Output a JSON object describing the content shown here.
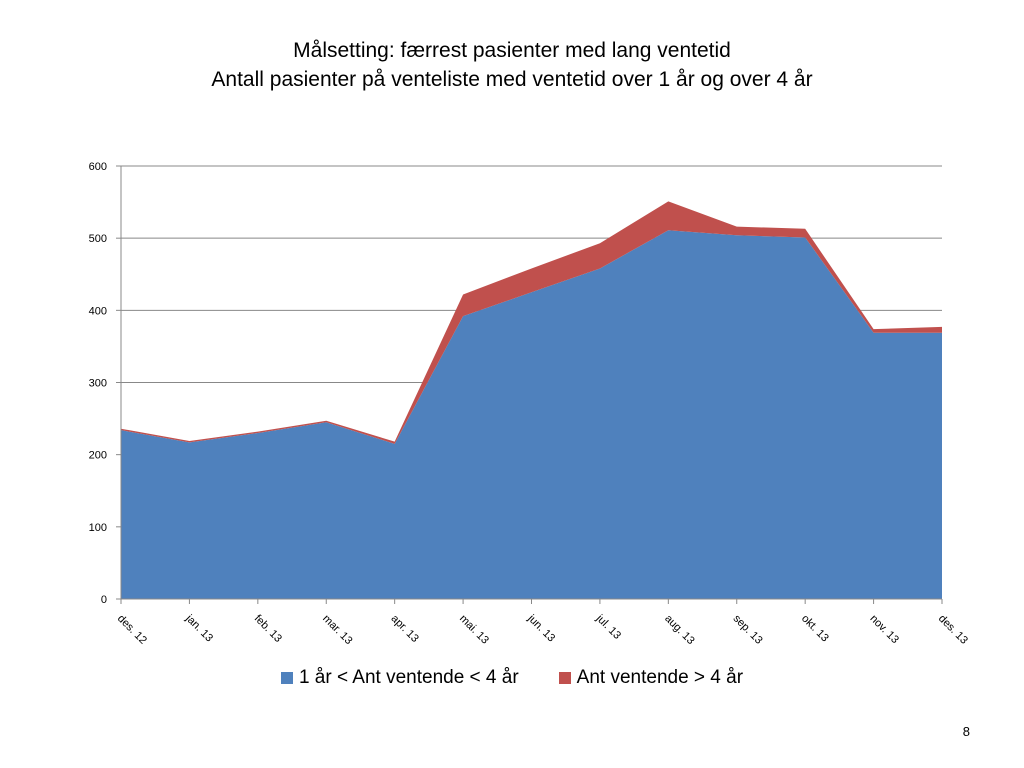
{
  "slide": {
    "title_line1": "Målsetting: færrest pasienter med lang ventetid",
    "title_line2": "Antall pasienter på venteliste med ventetid over 1 år og over 4 år",
    "page_number": "8"
  },
  "colors": {
    "series1": "#4f81bd",
    "series2": "#c0504d",
    "gridline": "#888888",
    "axis": "#888888"
  },
  "chart_data": {
    "type": "area",
    "stacked": true,
    "title": "Antall pasienter på venteliste med ventetid over 1 år og over 4 år",
    "xlabel": "",
    "ylabel": "",
    "categories": [
      "des. 12",
      "jan. 13",
      "feb. 13",
      "mar. 13",
      "apr. 13",
      "mai. 13",
      "jun. 13",
      "jul. 13",
      "aug. 13",
      "sep. 13",
      "okt. 13",
      "nov. 13",
      "des. 13"
    ],
    "series": [
      {
        "name": "1 år < Ant ventende < 4 år",
        "values": [
          234,
          217,
          230,
          245,
          215,
          392,
          425,
          458,
          511,
          504,
          501,
          369,
          369
        ]
      },
      {
        "name": "Ant ventende > 4 år",
        "values": [
          2,
          2,
          2,
          2,
          3,
          30,
          33,
          35,
          40,
          12,
          12,
          5,
          8
        ]
      }
    ],
    "ylim": [
      0,
      600
    ],
    "yticks": [
      0,
      100,
      200,
      300,
      400,
      500,
      600
    ],
    "grid": true,
    "legend": "bottom"
  }
}
